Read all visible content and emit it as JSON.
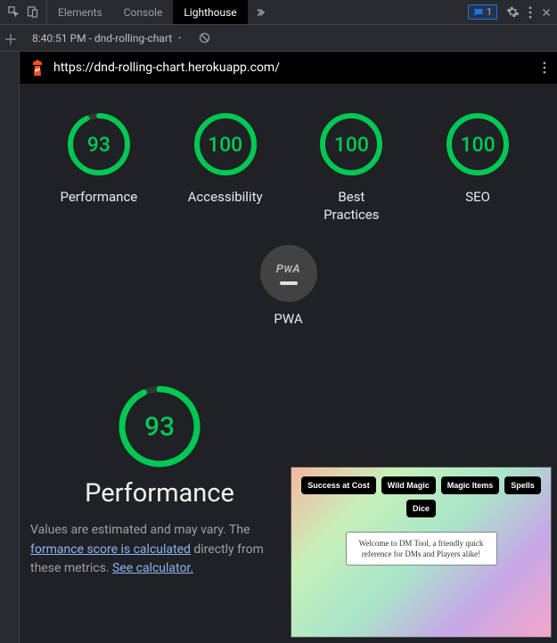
{
  "devtools": {
    "tabs": [
      "Elements",
      "Console",
      "Lighthouse"
    ],
    "active_tab": 2,
    "message_count": "1"
  },
  "toolbar": {
    "dropdown_label": "8:40:51 PM - dnd-rolling-chart"
  },
  "report": {
    "url": "https://dnd-rolling-chart.herokuapp.com/",
    "metrics": [
      {
        "label": "Performance",
        "score": 93,
        "fraction": 0.93
      },
      {
        "label": "Accessibility",
        "score": 100,
        "fraction": 1.0
      },
      {
        "label": "Best Practices",
        "score": 100,
        "fraction": 1.0
      },
      {
        "label": "SEO",
        "score": 100,
        "fraction": 1.0
      }
    ],
    "pwa_label": "PWA",
    "gauge_colors": {
      "ring_bg": "#2a3b2f",
      "ring_fg": "#00c853",
      "text": "#00c853"
    },
    "gauge_stroke_width": 6
  },
  "detail": {
    "score": 93,
    "fraction": 0.93,
    "title": "Performance",
    "desc_pre": "Values are estimated and may vary. The ",
    "link1": "formance score is calculated",
    "desc_mid": " directly from these metrics. ",
    "link2": "See calculator."
  },
  "preview": {
    "pills_row1": [
      "Success at Cost",
      "Wild Magic",
      "Magic Items",
      "Spells"
    ],
    "pills_row2": [
      "Dice"
    ],
    "card_text": "Welcome to DM Tool, a friendly quick reference for DMs and Players alike!"
  }
}
